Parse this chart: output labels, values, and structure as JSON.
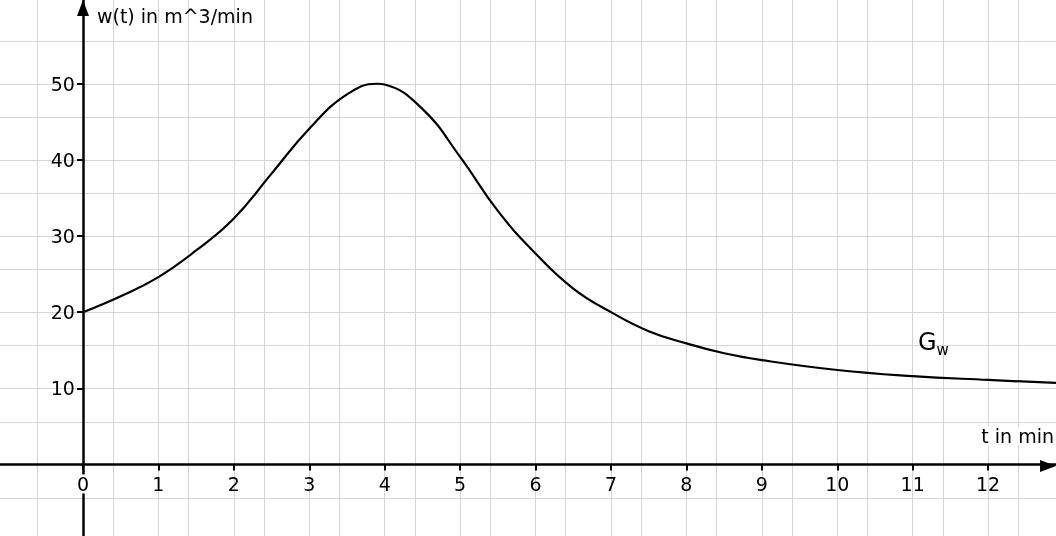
{
  "chart_data": {
    "type": "line",
    "xlabel": "t in min",
    "ylabel": "w(t) in m^3/min",
    "annotations": [
      "G$_{w}$"
    ],
    "series": [
      {
        "color": "#000000",
        "x": [
          0,
          0.5,
          1,
          1.5,
          2,
          2.5,
          3,
          3.5,
          3.9,
          4,
          4.5,
          5,
          5.5,
          6,
          6.5,
          7,
          7.5,
          8,
          8.5,
          9,
          10,
          11,
          12,
          12.9
        ],
        "values": [
          20,
          22.1,
          24.6,
          28.1,
          32.3,
          38.2,
          44.1,
          48.6,
          50,
          49.9,
          46.7,
          40.4,
          33.3,
          27.7,
          23.1,
          20,
          17.5,
          15.9,
          14.6,
          13.7,
          12.4,
          11.6,
          11.1,
          10.7
        ]
      }
    ],
    "xlim": [
      -1.1,
      12.9
    ],
    "ylim": [
      -9.4,
      61
    ],
    "xticks": [
      0,
      1,
      2,
      3,
      4,
      5,
      6,
      7,
      8,
      9,
      10,
      11,
      12
    ],
    "yticks": [
      10,
      20,
      30,
      40,
      50
    ],
    "grid": true,
    "marker": "none",
    "line_style": "solid"
  }
}
